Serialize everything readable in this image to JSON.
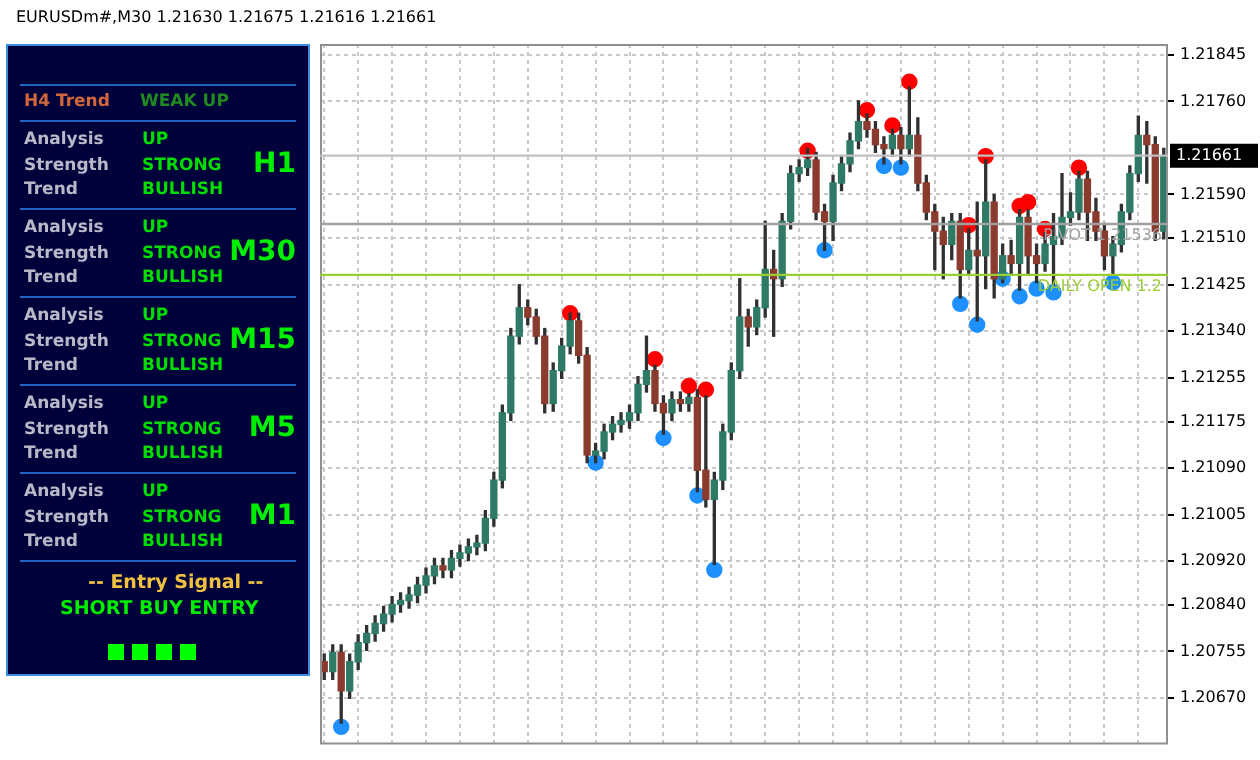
{
  "chart_data": {
    "type": "candlestick",
    "title": "EURUSDm#,M30  1.21630 1.21675 1.21616 1.21661",
    "categories": [
      null,
      null,
      null,
      null,
      null,
      null,
      null,
      null,
      null,
      null,
      null,
      null,
      null,
      null,
      null,
      null,
      null,
      null,
      null,
      null,
      null,
      null,
      null,
      null,
      null,
      null,
      null,
      null,
      null,
      null,
      null,
      null,
      null,
      null,
      null,
      null,
      null,
      null,
      null,
      null,
      null,
      null,
      null,
      null,
      null,
      null,
      null,
      null,
      null,
      null,
      null,
      null,
      null,
      null,
      null,
      null,
      null,
      null,
      null,
      null,
      null,
      null,
      null,
      null,
      null,
      null,
      null,
      null,
      null,
      null,
      null,
      null,
      null,
      null,
      null,
      null,
      null,
      null,
      null,
      null,
      null,
      null,
      null,
      null,
      null,
      null,
      null,
      null,
      null,
      null,
      null,
      null,
      null,
      null,
      null,
      null,
      null,
      null,
      null,
      null
    ],
    "ohlc": [
      [
        1.20736,
        1.2075,
        1.20704,
        1.20718
      ],
      [
        1.20718,
        1.20767,
        1.20704,
        1.20753
      ],
      [
        1.20753,
        1.20767,
        1.20624,
        1.20683
      ],
      [
        1.20683,
        1.2075,
        1.20669,
        1.20736
      ],
      [
        1.20736,
        1.20785,
        1.20722,
        1.20771
      ],
      [
        1.20771,
        1.20802,
        1.20757,
        1.20788
      ],
      [
        1.20788,
        1.2082,
        1.20774,
        1.20806
      ],
      [
        1.20806,
        1.20837,
        1.20792,
        1.20823
      ],
      [
        1.20823,
        1.20855,
        1.20809,
        1.20841
      ],
      [
        1.20841,
        1.20862,
        1.20827,
        1.20848
      ],
      [
        1.20848,
        1.20872,
        1.20834,
        1.20858
      ],
      [
        1.20858,
        1.2089,
        1.20844,
        1.20876
      ],
      [
        1.20876,
        1.20907,
        1.20862,
        1.20893
      ],
      [
        1.20893,
        1.20925,
        1.20879,
        1.20911
      ],
      [
        1.20911,
        1.20925,
        1.2089,
        1.20904
      ],
      [
        1.20904,
        1.20939,
        1.2089,
        1.20925
      ],
      [
        1.20925,
        1.20949,
        1.20911,
        1.20935
      ],
      [
        1.20935,
        1.2096,
        1.20921,
        1.20946
      ],
      [
        1.20946,
        1.20967,
        1.20932,
        1.20953
      ],
      [
        1.20953,
        1.21012,
        1.20939,
        1.20998
      ],
      [
        1.20998,
        1.21082,
        1.20984,
        1.21068
      ],
      [
        1.21068,
        1.21205,
        1.21054,
        1.21191
      ],
      [
        1.21191,
        1.21345,
        1.21177,
        1.21331
      ],
      [
        1.21331,
        1.21425,
        1.21317,
        1.21383
      ],
      [
        1.21383,
        1.21397,
        1.21352,
        1.21366
      ],
      [
        1.21366,
        1.2138,
        1.21317,
        1.21331
      ],
      [
        1.21331,
        1.21345,
        1.21191,
        1.21208
      ],
      [
        1.21208,
        1.21282,
        1.21194,
        1.21268
      ],
      [
        1.21268,
        1.21327,
        1.21254,
        1.21313
      ],
      [
        1.21313,
        1.21373,
        1.21299,
        1.21359
      ],
      [
        1.21359,
        1.21373,
        1.21282,
        1.21296
      ],
      [
        1.21296,
        1.2131,
        1.211,
        1.21114
      ],
      [
        1.21114,
        1.21135,
        1.211,
        1.21121
      ],
      [
        1.21121,
        1.2117,
        1.21107,
        1.21156
      ],
      [
        1.21156,
        1.21184,
        1.21142,
        1.2117
      ],
      [
        1.2117,
        1.21191,
        1.21156,
        1.21177
      ],
      [
        1.21177,
        1.21205,
        1.21163,
        1.21191
      ],
      [
        1.21191,
        1.21257,
        1.21177,
        1.21243
      ],
      [
        1.21243,
        1.21331,
        1.21229,
        1.21268
      ],
      [
        1.21268,
        1.21278,
        1.21194,
        1.21208
      ],
      [
        1.21208,
        1.21222,
        1.21152,
        1.21191
      ],
      [
        1.21191,
        1.21229,
        1.21177,
        1.21215
      ],
      [
        1.21215,
        1.21229,
        1.21194,
        1.21208
      ],
      [
        1.21208,
        1.21226,
        1.21194,
        1.21219
      ],
      [
        1.21219,
        1.21233,
        1.21047,
        1.21086
      ],
      [
        1.21086,
        1.21222,
        1.21019,
        1.21033
      ],
      [
        1.21033,
        1.21082,
        1.20914,
        1.21068
      ],
      [
        1.21068,
        1.2117,
        1.21051,
        1.21156
      ],
      [
        1.21156,
        1.21282,
        1.21142,
        1.21268
      ],
      [
        1.21268,
        1.21436,
        1.21254,
        1.21366
      ],
      [
        1.21366,
        1.2138,
        1.21313,
        1.21348
      ],
      [
        1.21348,
        1.21397,
        1.21334,
        1.21383
      ],
      [
        1.21383,
        1.21541,
        1.21366,
        1.21453
      ],
      [
        1.21453,
        1.21488,
        1.21331,
        1.21436
      ],
      [
        1.21436,
        1.21555,
        1.21422,
        1.21541
      ],
      [
        1.21541,
        1.21642,
        1.21527,
        1.21628
      ],
      [
        1.21628,
        1.21653,
        1.21614,
        1.21639
      ],
      [
        1.21639,
        1.21674,
        1.21625,
        1.21653
      ],
      [
        1.21653,
        1.21667,
        1.21544,
        1.21558
      ],
      [
        1.21558,
        1.21572,
        1.21488,
        1.21541
      ],
      [
        1.21541,
        1.21625,
        1.21506,
        1.21611
      ],
      [
        1.21611,
        1.2166,
        1.21597,
        1.21646
      ],
      [
        1.21646,
        1.21702,
        1.21632,
        1.21688
      ],
      [
        1.21688,
        1.21761,
        1.21674,
        1.21723
      ],
      [
        1.21723,
        1.21737,
        1.21695,
        1.21709
      ],
      [
        1.21709,
        1.21723,
        1.21667,
        1.21681
      ],
      [
        1.21681,
        1.21695,
        1.21646,
        1.21674
      ],
      [
        1.21674,
        1.21709,
        1.2166,
        1.21698
      ],
      [
        1.21698,
        1.21712,
        1.21646,
        1.21674
      ],
      [
        1.21674,
        1.21786,
        1.2166,
        1.21698
      ],
      [
        1.21698,
        1.2173,
        1.21597,
        1.21611
      ],
      [
        1.21611,
        1.21625,
        1.21544,
        1.21558
      ],
      [
        1.21558,
        1.21572,
        1.21453,
        1.21523
      ],
      [
        1.21523,
        1.21548,
        1.21436,
        1.21499
      ],
      [
        1.21499,
        1.21555,
        1.21471,
        1.21541
      ],
      [
        1.21541,
        1.21555,
        1.21401,
        1.21453
      ],
      [
        1.21453,
        1.21527,
        1.21443,
        1.21488
      ],
      [
        1.21488,
        1.21576,
        1.21359,
        1.21478
      ],
      [
        1.21478,
        1.21653,
        1.21418,
        1.21576
      ],
      [
        1.21576,
        1.2159,
        1.21401,
        1.21436
      ],
      [
        1.21436,
        1.21499,
        1.21429,
        1.21478
      ],
      [
        1.21478,
        1.21506,
        1.21446,
        1.21464
      ],
      [
        1.21464,
        1.21562,
        1.21415,
        1.21548
      ],
      [
        1.21548,
        1.21562,
        1.21443,
        1.21478
      ],
      [
        1.21478,
        1.21499,
        1.21429,
        1.21464
      ],
      [
        1.21464,
        1.2152,
        1.2145,
        1.21499
      ],
      [
        1.21499,
        1.21555,
        1.21425,
        1.21513
      ],
      [
        1.21513,
        1.21628,
        1.21499,
        1.21548
      ],
      [
        1.21548,
        1.21593,
        1.21534,
        1.21558
      ],
      [
        1.21558,
        1.21632,
        1.21544,
        1.21618
      ],
      [
        1.21618,
        1.21632,
        1.21506,
        1.21558
      ],
      [
        1.21558,
        1.21583,
        1.21506,
        1.21523
      ],
      [
        1.21523,
        1.21537,
        1.21453,
        1.21478
      ],
      [
        1.21478,
        1.21513,
        1.21443,
        1.21499
      ],
      [
        1.21499,
        1.21572,
        1.21485,
        1.21558
      ],
      [
        1.21558,
        1.21642,
        1.21544,
        1.21628
      ],
      [
        1.21628,
        1.21733,
        1.21614,
        1.21698
      ],
      [
        1.21698,
        1.21723,
        1.21611,
        1.21681
      ],
      [
        1.21681,
        1.21695,
        1.21506,
        1.21523
      ],
      [
        1.21523,
        1.21674,
        1.21509,
        1.21661
      ]
    ],
    "series": [
      {
        "type": "scatter",
        "color": "#ff0000",
        "values": [
          null,
          null,
          null,
          null,
          null,
          null,
          null,
          null,
          null,
          null,
          null,
          null,
          null,
          null,
          null,
          null,
          null,
          null,
          null,
          null,
          null,
          null,
          null,
          null,
          null,
          null,
          null,
          null,
          null,
          1.21373,
          null,
          null,
          null,
          null,
          null,
          null,
          null,
          null,
          null,
          1.21289,
          null,
          null,
          null,
          1.2124,
          null,
          1.21233,
          null,
          null,
          null,
          null,
          null,
          null,
          null,
          null,
          null,
          null,
          null,
          1.2167,
          null,
          null,
          null,
          null,
          null,
          null,
          1.21744,
          null,
          null,
          1.21716,
          null,
          1.21796,
          null,
          null,
          null,
          null,
          null,
          null,
          1.21534,
          null,
          1.2166,
          null,
          null,
          null,
          1.21569,
          1.21576,
          null,
          1.21527,
          null,
          null,
          null,
          1.21639,
          null,
          null,
          null,
          null,
          null,
          null,
          null,
          null,
          null,
          null
        ]
      },
      {
        "type": "scatter",
        "color": "#1e90ff",
        "values": [
          null,
          null,
          1.20617,
          null,
          null,
          null,
          null,
          null,
          null,
          null,
          null,
          null,
          null,
          null,
          null,
          null,
          null,
          null,
          null,
          null,
          null,
          null,
          null,
          null,
          null,
          null,
          null,
          null,
          null,
          null,
          null,
          null,
          1.211,
          null,
          null,
          null,
          null,
          null,
          null,
          null,
          1.21145,
          null,
          null,
          null,
          1.2104,
          null,
          1.20904,
          null,
          null,
          null,
          null,
          null,
          null,
          null,
          null,
          null,
          null,
          null,
          null,
          1.21488,
          null,
          null,
          null,
          null,
          null,
          null,
          1.21642,
          null,
          1.21639,
          null,
          null,
          null,
          null,
          null,
          null,
          1.2139,
          null,
          1.21352,
          null,
          null,
          1.21436,
          null,
          1.21404,
          null,
          1.21418,
          null,
          1.21411,
          null,
          null,
          null,
          null,
          null,
          null,
          1.21429,
          null,
          null,
          null,
          null,
          null,
          null
        ]
      }
    ],
    "ylim": [
      1.20585,
      1.21865
    ],
    "yticks": [
      1.21845,
      {
        "value": 1.2176,
        "label": "1.21760"
      },
      {
        "value": 1.2159,
        "label": "1.21590"
      },
      {
        "value": 1.2151,
        "label": "1.21510"
      },
      1.21425,
      {
        "value": 1.2134,
        "label": "1.21340"
      },
      1.21255,
      1.21175,
      {
        "value": 1.2109,
        "label": "1.21090"
      },
      1.21005,
      {
        "value": 1.2092,
        "label": "1.20920"
      },
      {
        "value": 1.2084,
        "label": "1.20840"
      },
      1.20755,
      {
        "value": 1.2067,
        "label": "1.20670"
      }
    ],
    "ref_lines": [
      {
        "axis": "y",
        "value": 1.21661,
        "label": "1.21661"
      },
      {
        "axis": "y",
        "value": 1.21536,
        "label": "PIVOT 1.21536",
        "color": "#a0a0a0"
      },
      {
        "axis": "y",
        "value": 1.21443,
        "label": "DAILY OPEN 1.2",
        "color": "#9acd32"
      }
    ],
    "annotations": [
      "H4 Trend",
      "WEAK UP",
      "Analysis",
      "UP",
      "Strength",
      "STRONG",
      "Trend",
      "BULLISH",
      "H1",
      "Analysis",
      "UP",
      "Strength",
      "STRONG",
      "Trend",
      "BULLISH",
      "M30",
      "Analysis",
      "UP",
      "Strength",
      "STRONG",
      "Trend",
      "BULLISH",
      "M15",
      "Analysis",
      "UP",
      "Strength",
      "STRONG",
      "Trend",
      "BULLISH",
      "M5",
      "Analysis",
      "UP",
      "Strength",
      "STRONG",
      "Trend",
      "BULLISH",
      "M1",
      "-- Entry Signal --",
      "SHORT BUY ENTRY"
    ],
    "grid": true,
    "legend": false,
    "tick_labels": "y",
    "marker": "circle"
  }
}
